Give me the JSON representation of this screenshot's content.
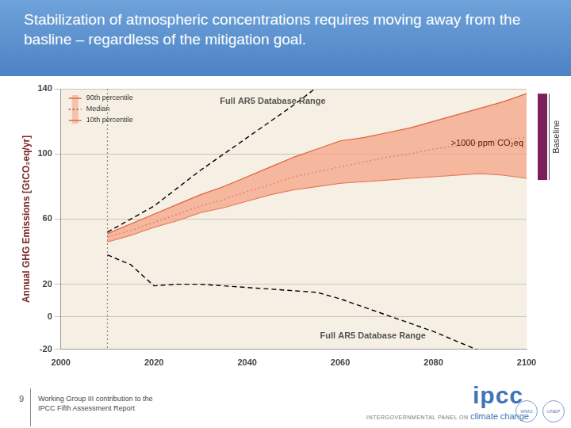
{
  "slide": {
    "title": "Stabilization of atmospheric concentrations requires moving away from the basline – regardless of the mitigation goal.",
    "page_number": "9",
    "footer_lines": [
      "Working Group III contribution to the",
      "IPCC Fifth Assessment Report"
    ],
    "logo": "ipcc",
    "organization": [
      "INTERGOVERNMENTAL PANEL ON",
      "climate change"
    ],
    "seals": [
      "WMO",
      "UNEP"
    ]
  },
  "chart_data": {
    "type": "line",
    "y_label": "Annual GHG Emissions [GtCO₂eq/yr]",
    "x": [
      2010,
      2015,
      2020,
      2025,
      2030,
      2035,
      2040,
      2045,
      2050,
      2055,
      2060,
      2065,
      2070,
      2075,
      2080,
      2085,
      2090,
      2095,
      2100
    ],
    "series": [
      {
        "name": "90th percentile",
        "color": "#e0603f",
        "line_style": "solid",
        "values": [
          51,
          57,
          63,
          69,
          75,
          80,
          86,
          92,
          98,
          103,
          108,
          110,
          113,
          116,
          120,
          124,
          128,
          132,
          137
        ]
      },
      {
        "name": "Median",
        "color": "#c8321e",
        "line_style": "dotted",
        "values": [
          49,
          53,
          58,
          63,
          68,
          72,
          77,
          81,
          86,
          89,
          92,
          95,
          98,
          100,
          103,
          105,
          107,
          109,
          110
        ]
      },
      {
        "name": "10th percentile",
        "color": "#e0603f",
        "line_style": "solid",
        "values": [
          46,
          50,
          55,
          59,
          64,
          67,
          71,
          75,
          78,
          80,
          82,
          83,
          84,
          85,
          86,
          87,
          88,
          87,
          85
        ]
      }
    ],
    "band": {
      "between": [
        "90th percentile",
        "10th percentile"
      ],
      "color": "#f4a487"
    },
    "envelope": {
      "name": "Full AR5 Database Range",
      "color": "#000000",
      "line_style": "dashed",
      "upper": [
        52,
        60,
        68,
        79,
        90,
        100,
        110,
        120,
        130,
        141,
        null,
        null,
        null,
        null,
        null,
        null,
        null,
        null,
        null
      ],
      "lower": [
        38,
        32,
        19,
        20,
        20,
        19,
        18,
        17,
        16,
        15,
        11,
        6,
        1,
        -4,
        -9,
        -15,
        -21,
        null,
        null
      ]
    },
    "annotations": [
      ">1000 ppm CO₂eq"
    ],
    "reference_line_x": 2010,
    "baseline_bar": {
      "label": "Baseline",
      "range": [
        84,
        137
      ],
      "color": "#7a1f5c"
    },
    "xlim": [
      2000,
      2100
    ],
    "xticks": [
      2000,
      2020,
      2040,
      2060,
      2080,
      2100
    ],
    "ylim": [
      -20,
      140
    ],
    "yticks": [
      -20,
      0,
      20,
      60,
      100,
      140
    ],
    "grid": true,
    "legend": "upper left"
  }
}
